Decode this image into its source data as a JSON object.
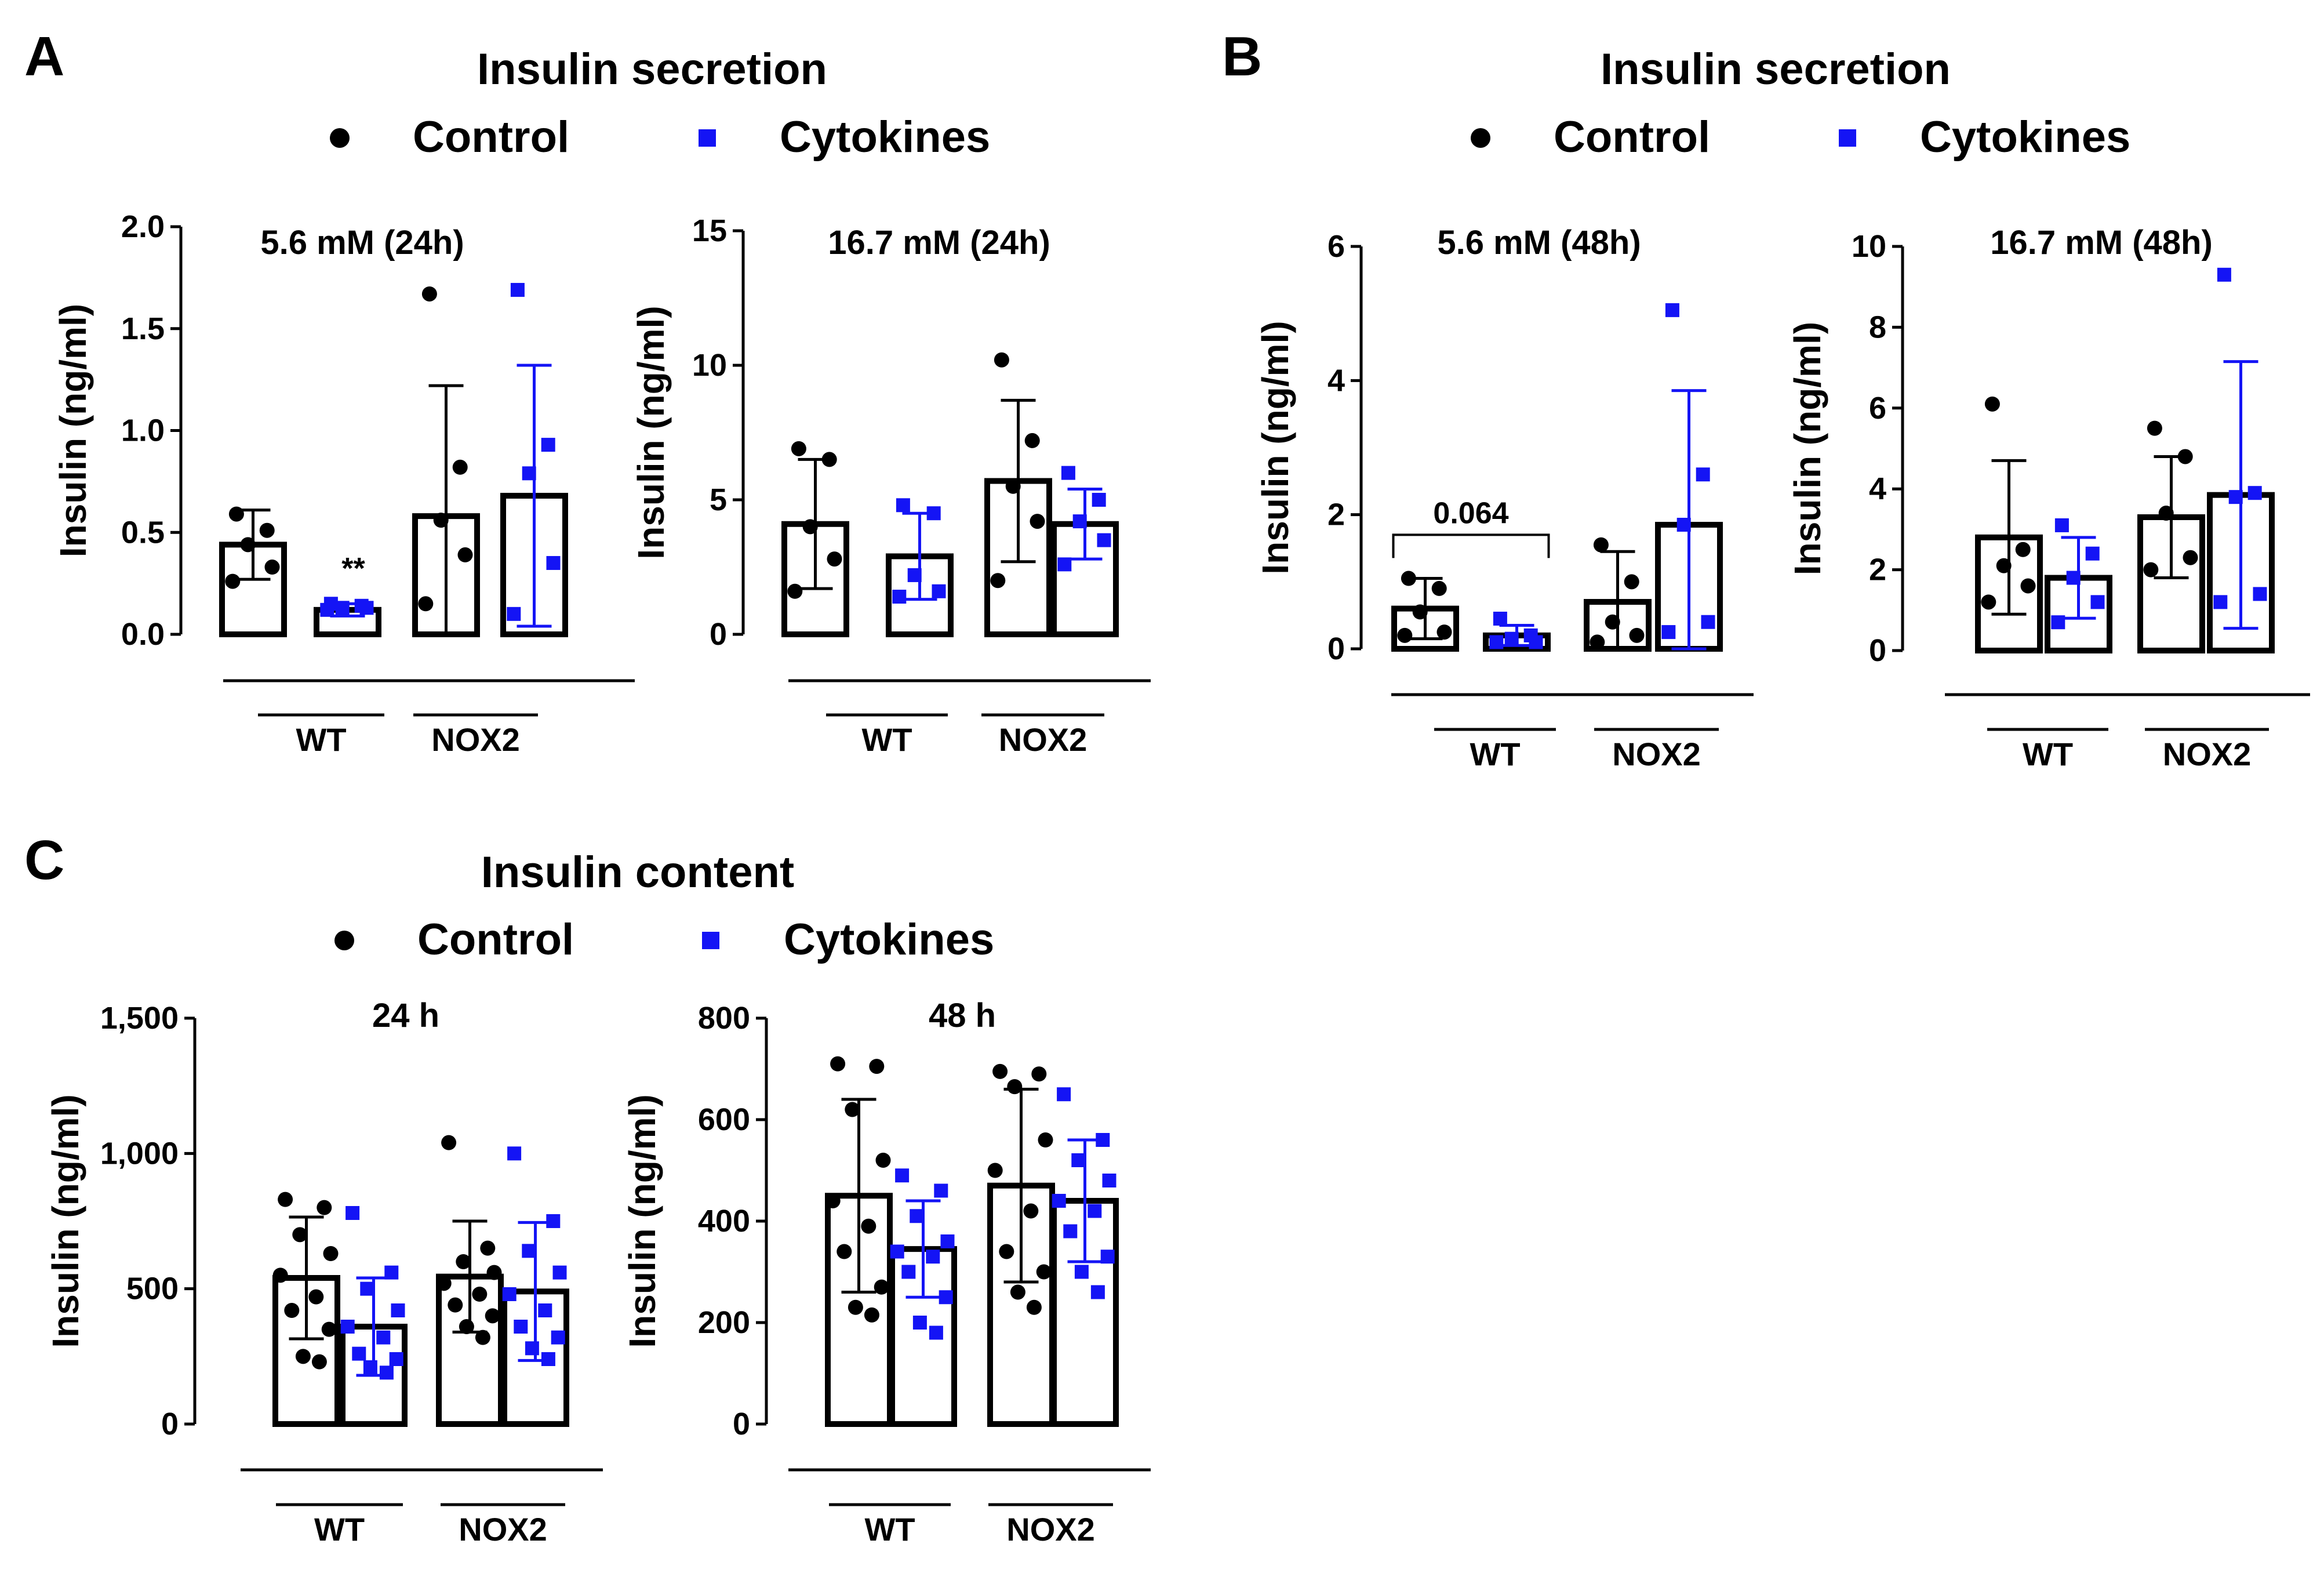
{
  "colors": {
    "control": "#000000",
    "cytokines": "#1414f5"
  },
  "legend": {
    "control": "Control",
    "cytokines": "Cytokines"
  },
  "panels": {
    "A": {
      "letter": "A",
      "title": "Insulin secretion"
    },
    "B": {
      "letter": "B",
      "title": "Insulin secretion"
    },
    "C": {
      "letter": "C",
      "title": "Insulin content"
    }
  },
  "chart_data": [
    {
      "id": "a1",
      "panel": "A",
      "type": "bar",
      "title": "5.6 mM (24h)",
      "ylabel": "Insulin (ng/ml)",
      "ylim": [
        0,
        2.0
      ],
      "yticks": [
        0,
        0.5,
        1.0,
        1.5,
        2.0
      ],
      "ytick_labels": [
        "0.0",
        "0.5",
        "1.0",
        "1.5",
        "2.0"
      ],
      "groups": [
        "WT",
        "NOX2"
      ],
      "legend": [
        "Control",
        "Cytokines"
      ],
      "bars": [
        {
          "group": "WT",
          "series": "Control",
          "mean": 0.44,
          "sd": 0.17,
          "points": [
            0.59,
            0.51,
            0.44,
            0.33,
            0.26
          ]
        },
        {
          "group": "WT",
          "series": "Cytokines",
          "mean": 0.12,
          "sd": 0.03,
          "points": [
            0.15,
            0.14,
            0.13,
            0.13,
            0.12
          ]
        },
        {
          "group": "NOX2",
          "series": "Control",
          "mean": 0.58,
          "sd": 0.64,
          "points": [
            1.67,
            0.82,
            0.56,
            0.39,
            0.15
          ]
        },
        {
          "group": "NOX2",
          "series": "Cytokines",
          "mean": 0.68,
          "sd": 0.64,
          "points": [
            1.69,
            0.93,
            0.79,
            0.35,
            0.1
          ]
        }
      ],
      "annotations": [
        {
          "text": "**",
          "group": "WT",
          "series": "Cytokines",
          "y": 0.33
        }
      ]
    },
    {
      "id": "a2",
      "panel": "A",
      "type": "bar",
      "title": "16.7 mM (24h)",
      "ylabel": "Insulin (ng/ml)",
      "ylim": [
        0,
        15
      ],
      "yticks": [
        0,
        5,
        10,
        15
      ],
      "ytick_labels": [
        "0",
        "5",
        "10",
        "15"
      ],
      "groups": [
        "WT",
        "NOX2"
      ],
      "legend": [
        "Control",
        "Cytokines"
      ],
      "bars": [
        {
          "group": "WT",
          "series": "Control",
          "mean": 4.1,
          "sd": 2.4,
          "points": [
            6.9,
            6.5,
            4.0,
            2.8,
            1.6
          ]
        },
        {
          "group": "WT",
          "series": "Cytokines",
          "mean": 2.9,
          "sd": 1.6,
          "points": [
            4.8,
            4.5,
            2.2,
            1.6,
            1.4
          ]
        },
        {
          "group": "NOX2",
          "series": "Control",
          "mean": 5.7,
          "sd": 3.0,
          "points": [
            10.2,
            7.2,
            5.5,
            4.2,
            2.0
          ]
        },
        {
          "group": "NOX2",
          "series": "Cytokines",
          "mean": 4.1,
          "sd": 1.3,
          "points": [
            6.0,
            5.0,
            4.2,
            3.5,
            2.6
          ]
        }
      ]
    },
    {
      "id": "b1",
      "panel": "B",
      "type": "bar",
      "title": "5.6 mM (48h)",
      "ylabel": "Insulin (ng/ml)",
      "ylim": [
        0,
        6
      ],
      "yticks": [
        0,
        2,
        4,
        6
      ],
      "ytick_labels": [
        "0",
        "2",
        "4",
        "6"
      ],
      "groups": [
        "WT",
        "NOX2"
      ],
      "legend": [
        "Control",
        "Cytokines"
      ],
      "bars": [
        {
          "group": "WT",
          "series": "Control",
          "mean": 0.6,
          "sd": 0.45,
          "points": [
            1.05,
            0.9,
            0.55,
            0.25,
            0.2
          ]
        },
        {
          "group": "WT",
          "series": "Cytokines",
          "mean": 0.2,
          "sd": 0.15,
          "points": [
            0.45,
            0.2,
            0.15,
            0.1,
            0.1
          ]
        },
        {
          "group": "NOX2",
          "series": "Control",
          "mean": 0.7,
          "sd": 0.75,
          "points": [
            1.55,
            1.0,
            0.4,
            0.2,
            0.1
          ]
        },
        {
          "group": "NOX2",
          "series": "Cytokines",
          "mean": 1.85,
          "sd": 2.0,
          "points": [
            5.05,
            2.6,
            1.85,
            0.4,
            0.25
          ]
        }
      ],
      "annotations": [
        {
          "text": "0.064",
          "type": "bracket",
          "from": "WT Control",
          "to": "WT Cytokines",
          "y": 1.7
        }
      ]
    },
    {
      "id": "b2",
      "panel": "B",
      "type": "bar",
      "title": "16.7 mM (48h)",
      "ylabel": "Insulin (ng/ml)",
      "ylim": [
        0,
        10
      ],
      "yticks": [
        0,
        2,
        4,
        6,
        8,
        10
      ],
      "ytick_labels": [
        "0",
        "2",
        "4",
        "6",
        "8",
        "10"
      ],
      "groups": [
        "WT",
        "NOX2"
      ],
      "legend": [
        "Control",
        "Cytokines"
      ],
      "bars": [
        {
          "group": "WT",
          "series": "Control",
          "mean": 2.8,
          "sd": 1.9,
          "points": [
            6.1,
            2.5,
            2.1,
            1.6,
            1.2
          ]
        },
        {
          "group": "WT",
          "series": "Cytokines",
          "mean": 1.8,
          "sd": 1.0,
          "points": [
            3.1,
            2.4,
            1.8,
            1.2,
            0.7
          ]
        },
        {
          "group": "NOX2",
          "series": "Control",
          "mean": 3.3,
          "sd": 1.5,
          "points": [
            5.5,
            4.8,
            3.4,
            2.3,
            2.0
          ]
        },
        {
          "group": "NOX2",
          "series": "Cytokines",
          "mean": 3.85,
          "sd": 3.3,
          "points": [
            9.3,
            3.9,
            3.8,
            1.4,
            1.2
          ]
        }
      ]
    },
    {
      "id": "c1",
      "panel": "C",
      "type": "bar",
      "title": "24 h",
      "ylabel": "Insulin (ng/ml)",
      "ylim": [
        0,
        1500
      ],
      "yticks": [
        0,
        500,
        1000,
        1500
      ],
      "ytick_labels": [
        "0",
        "500",
        "1,000",
        "1,500"
      ],
      "groups": [
        "WT",
        "NOX2"
      ],
      "legend": [
        "Control",
        "Cytokines"
      ],
      "bars": [
        {
          "group": "WT",
          "series": "Control",
          "mean": 540,
          "sd": 225,
          "points": [
            830,
            800,
            700,
            630,
            550,
            470,
            420,
            350,
            250,
            230
          ]
        },
        {
          "group": "WT",
          "series": "Cytokines",
          "mean": 360,
          "sd": 180,
          "points": [
            780,
            560,
            500,
            420,
            360,
            320,
            260,
            240,
            210,
            190
          ]
        },
        {
          "group": "NOX2",
          "series": "Control",
          "mean": 545,
          "sd": 205,
          "points": [
            1040,
            650,
            600,
            560,
            520,
            480,
            440,
            400,
            360,
            320
          ]
        },
        {
          "group": "NOX2",
          "series": "Cytokines",
          "mean": 490,
          "sd": 255,
          "points": [
            1000,
            750,
            640,
            560,
            480,
            420,
            360,
            320,
            280,
            240
          ]
        }
      ]
    },
    {
      "id": "c2",
      "panel": "C",
      "type": "bar",
      "title": "48 h",
      "ylabel": "Insulin (ng/ml)",
      "ylim": [
        0,
        800
      ],
      "yticks": [
        0,
        200,
        400,
        600,
        800
      ],
      "ytick_labels": [
        "0",
        "200",
        "400",
        "600",
        "800"
      ],
      "groups": [
        "WT",
        "NOX2"
      ],
      "legend": [
        "Control",
        "Cytokines"
      ],
      "bars": [
        {
          "group": "WT",
          "series": "Control",
          "mean": 450,
          "sd": 190,
          "points": [
            710,
            705,
            620,
            520,
            440,
            390,
            340,
            270,
            230,
            215
          ]
        },
        {
          "group": "WT",
          "series": "Cytokines",
          "mean": 345,
          "sd": 95,
          "points": [
            490,
            460,
            410,
            360,
            340,
            330,
            300,
            250,
            200,
            180
          ]
        },
        {
          "group": "NOX2",
          "series": "Control",
          "mean": 470,
          "sd": 190,
          "points": [
            695,
            690,
            665,
            560,
            500,
            420,
            340,
            300,
            260,
            230
          ]
        },
        {
          "group": "NOX2",
          "series": "Cytokines",
          "mean": 440,
          "sd": 120,
          "points": [
            650,
            560,
            520,
            480,
            440,
            420,
            380,
            330,
            300,
            260
          ]
        }
      ]
    }
  ]
}
